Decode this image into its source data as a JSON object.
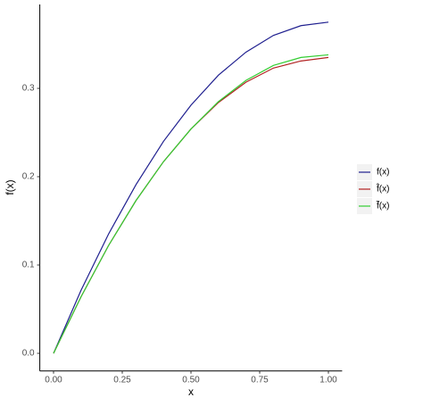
{
  "chart_data": {
    "type": "line",
    "x_label": "x",
    "y_label": "f(x)",
    "x": [
      0,
      0.1,
      0.2,
      0.3,
      0.4,
      0.5,
      0.6,
      0.7,
      0.8,
      0.9,
      1.0
    ],
    "series": [
      {
        "name": "f(x)",
        "color": "#1f1f8f",
        "values": [
          0,
          0.0713,
          0.135,
          0.191,
          0.24,
          0.281,
          0.315,
          0.341,
          0.36,
          0.371,
          0.375
        ]
      },
      {
        "name": "f̂(x)",
        "color": "#b22222",
        "values": [
          0,
          0.064,
          0.122,
          0.173,
          0.217,
          0.254,
          0.284,
          0.307,
          0.323,
          0.331,
          0.335
        ]
      },
      {
        "name": "f̃(x)",
        "color": "#32cd32",
        "values": [
          0,
          0.064,
          0.122,
          0.173,
          0.217,
          0.254,
          0.285,
          0.309,
          0.326,
          0.335,
          0.338
        ]
      }
    ],
    "xlim": [
      -0.05,
      1.05
    ],
    "ylim": [
      -0.02,
      0.395
    ],
    "xticks": [
      {
        "value": 0,
        "label": "0.00"
      },
      {
        "value": 0.25,
        "label": "0.25"
      },
      {
        "value": 0.5,
        "label": "0.50"
      },
      {
        "value": 0.75,
        "label": "0.75"
      },
      {
        "value": 1,
        "label": "1.00"
      }
    ],
    "yticks": [
      {
        "value": 0,
        "label": "0.0"
      },
      {
        "value": 0.1,
        "label": "0.1"
      },
      {
        "value": 0.2,
        "label": "0.2"
      },
      {
        "value": 0.3,
        "label": "0.3"
      }
    ],
    "grid": false,
    "legend": "right"
  }
}
